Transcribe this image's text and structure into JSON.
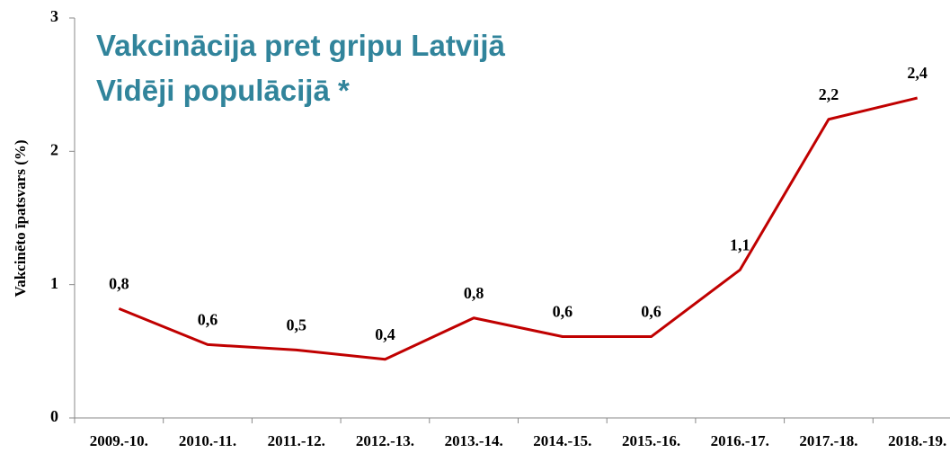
{
  "chart_data": {
    "type": "line",
    "title": "Vakcinācija pret gripu Latvijā",
    "subtitle": "Vidēji populācijā *",
    "y_label": "Vakcinēto īpatsvars (%)",
    "categories": [
      "2009.-10.",
      "2010.-11.",
      "2011.-12.",
      "2012.-13.",
      "2013.-14.",
      "2014.-15.",
      "2015.-16.",
      "2016.-17.",
      "2017.-18.",
      "2018.-19."
    ],
    "series": [
      {
        "name": "Vakcinēto īpatsvars",
        "color": "#c00000",
        "values": [
          0.82,
          0.55,
          0.51,
          0.44,
          0.75,
          0.61,
          0.61,
          1.11,
          2.24,
          2.4
        ],
        "value_labels": [
          "0,8",
          "0,6",
          "0,5",
          "0,4",
          "0,8",
          "0,6",
          "0,6",
          "1,1",
          "2,2",
          "2,4"
        ]
      }
    ],
    "ylim": [
      0,
      3
    ],
    "yticks": [
      0,
      1,
      2,
      3
    ],
    "grid": false
  }
}
